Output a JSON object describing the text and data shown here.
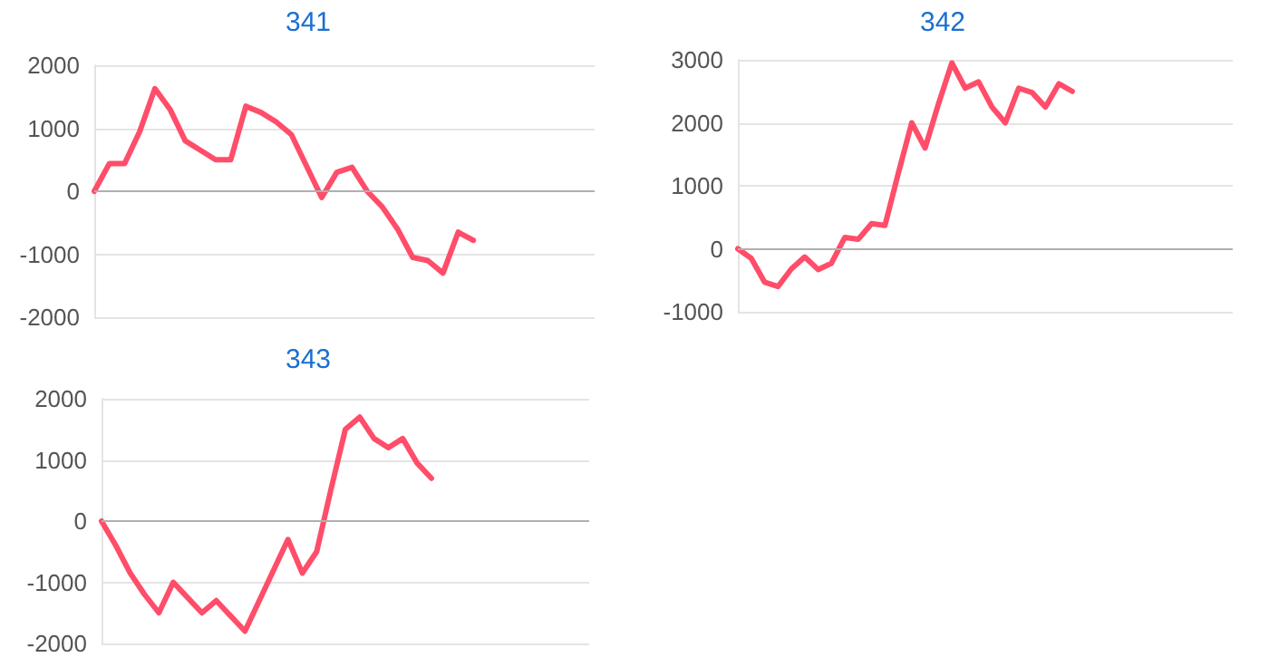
{
  "chart_data": [
    {
      "type": "line",
      "title": "341",
      "categories": [
        null,
        null,
        null,
        null,
        null,
        null,
        null,
        null,
        null,
        null,
        null,
        null,
        null,
        null,
        null,
        null,
        null,
        null,
        null,
        null,
        null,
        null,
        null,
        null,
        null,
        null,
        null,
        null,
        null,
        null,
        null,
        null,
        null,
        null
      ],
      "series": [
        {
          "color": "#ff4d6a",
          "values": [
            0,
            440,
            440,
            950,
            1630,
            1300,
            800,
            650,
            500,
            500,
            1350,
            1250,
            1100,
            900,
            400,
            -100,
            300,
            380,
            0,
            -250,
            -600,
            -1050,
            -1100,
            -1300,
            -650,
            -780,
            null,
            null,
            null,
            null,
            null,
            null,
            null,
            null
          ]
        }
      ],
      "ylim": [
        -2000,
        2000
      ],
      "yticks": [
        -2000,
        -1000,
        0,
        1000,
        2000
      ],
      "grid": "y",
      "marker": "none"
    },
    {
      "type": "line",
      "title": "342",
      "categories": [
        null,
        null,
        null,
        null,
        null,
        null,
        null,
        null,
        null,
        null,
        null,
        null,
        null,
        null,
        null,
        null,
        null,
        null,
        null,
        null,
        null,
        null,
        null,
        null,
        null,
        null,
        null,
        null,
        null,
        null,
        null,
        null,
        null,
        null,
        null,
        null,
        null,
        null
      ],
      "series": [
        {
          "color": "#ff4d6a",
          "values": [
            0,
            -150,
            -530,
            -600,
            -320,
            -130,
            -330,
            -230,
            180,
            150,
            400,
            370,
            1200,
            2000,
            1600,
            2300,
            2950,
            2550,
            2650,
            2250,
            2000,
            2550,
            2480,
            2250,
            2620,
            2500,
            null,
            null,
            null,
            null,
            null,
            null,
            null,
            null,
            null,
            null,
            null,
            null
          ]
        }
      ],
      "ylim": [
        -1000,
        3000
      ],
      "yticks": [
        -1000,
        0,
        1000,
        2000,
        3000
      ],
      "grid": "y",
      "marker": "none"
    },
    {
      "type": "line",
      "title": "343",
      "categories": [
        null,
        null,
        null,
        null,
        null,
        null,
        null,
        null,
        null,
        null,
        null,
        null,
        null,
        null,
        null,
        null,
        null,
        null,
        null,
        null,
        null,
        null,
        null,
        null,
        null,
        null,
        null,
        null,
        null,
        null,
        null,
        null,
        null,
        null,
        null
      ],
      "series": [
        {
          "color": "#ff4d6a",
          "values": [
            0,
            -400,
            -850,
            -1200,
            -1500,
            -1000,
            -1250,
            -1500,
            -1300,
            -1550,
            -1800,
            -1300,
            -800,
            -300,
            -850,
            -500,
            520,
            1500,
            1700,
            1350,
            1200,
            1350,
            950,
            700,
            null,
            null,
            null,
            null,
            null,
            null,
            null,
            null,
            null,
            null,
            null
          ]
        }
      ],
      "ylim": [
        -2000,
        2000
      ],
      "yticks": [
        -2000,
        -1000,
        0,
        1000,
        2000
      ],
      "grid": "y",
      "marker": "none"
    }
  ]
}
